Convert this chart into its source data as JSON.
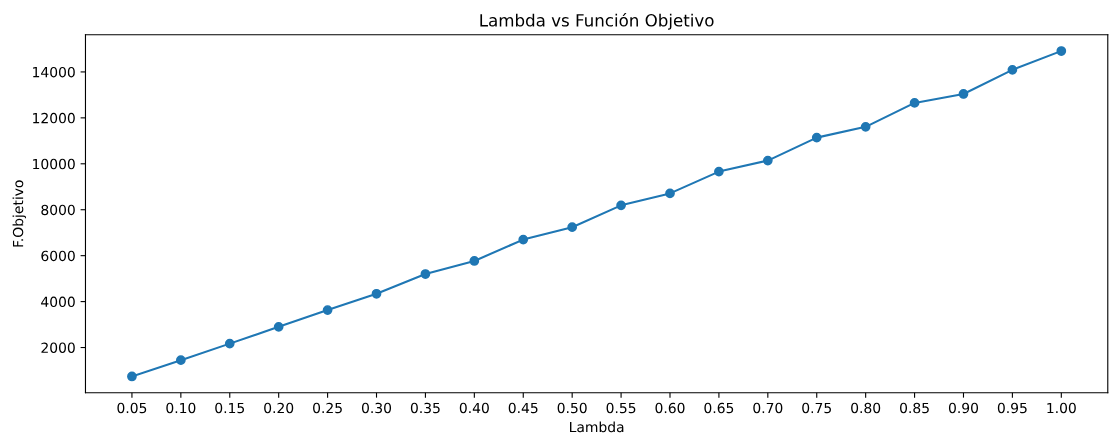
{
  "chart_data": {
    "type": "line",
    "title": "Lambda vs Función Objetivo",
    "xlabel": "Lambda",
    "ylabel": "F.Objetivo",
    "x": [
      0.05,
      0.1,
      0.15,
      0.2,
      0.25,
      0.3,
      0.35,
      0.4,
      0.45,
      0.5,
      0.55,
      0.6,
      0.65,
      0.7,
      0.75,
      0.8,
      0.85,
      0.9,
      0.95,
      1.0
    ],
    "series": [
      {
        "color": "#1f77b4",
        "values": [
          740,
          1450,
          2170,
          2900,
          3630,
          4340,
          5200,
          5770,
          6700,
          7240,
          8190,
          8710,
          9660,
          10140,
          11140,
          11610,
          12650,
          13040,
          14090,
          14910
        ]
      }
    ],
    "marker": "circle",
    "line_style": "solid",
    "grid": false,
    "legend": false,
    "xlim": [
      0.0025,
      1.0475
    ],
    "ylim": [
      30,
      15620
    ],
    "xticks": [
      {
        "value": 0.05,
        "label": "0.05"
      },
      {
        "value": 0.1,
        "label": "0.10"
      },
      {
        "value": 0.15,
        "label": "0.15"
      },
      {
        "value": 0.2,
        "label": "0.20"
      },
      {
        "value": 0.25,
        "label": "0.25"
      },
      {
        "value": 0.3,
        "label": "0.30"
      },
      {
        "value": 0.35,
        "label": "0.35"
      },
      {
        "value": 0.4,
        "label": "0.40"
      },
      {
        "value": 0.45,
        "label": "0.45"
      },
      {
        "value": 0.5,
        "label": "0.50"
      },
      {
        "value": 0.55,
        "label": "0.55"
      },
      {
        "value": 0.6,
        "label": "0.60"
      },
      {
        "value": 0.65,
        "label": "0.65"
      },
      {
        "value": 0.7,
        "label": "0.70"
      },
      {
        "value": 0.75,
        "label": "0.75"
      },
      {
        "value": 0.8,
        "label": "0.80"
      },
      {
        "value": 0.85,
        "label": "0.85"
      },
      {
        "value": 0.9,
        "label": "0.90"
      },
      {
        "value": 0.95,
        "label": "0.95"
      },
      {
        "value": 1.0,
        "label": "1.00"
      }
    ],
    "yticks": [
      2000,
      4000,
      6000,
      8000,
      10000,
      12000,
      14000
    ]
  }
}
